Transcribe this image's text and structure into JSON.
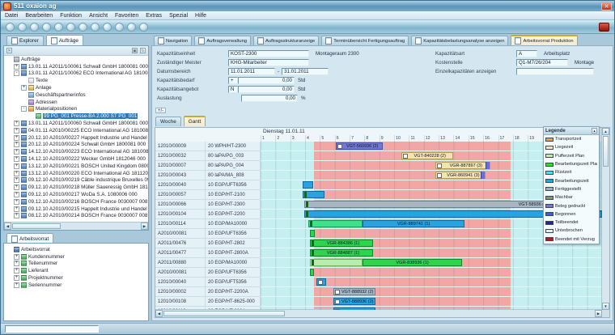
{
  "window": {
    "title": "511 oxaion ag",
    "close_glyph": "✕"
  },
  "menu": {
    "items": [
      "Datei",
      "Bearbeiten",
      "Funktion",
      "Ansicht",
      "Favoriten",
      "Extras",
      "Spezial",
      "Hilfe"
    ]
  },
  "toolbar": {
    "button_count": 12
  },
  "explorer": {
    "tabs": [
      "Explorer",
      "Aufträge"
    ],
    "active_tab": 1,
    "items": [
      {
        "t": "Aufträge",
        "l": 0,
        "x": "",
        "i": "root"
      },
      {
        "t": "13.01.11 A2011/100061 Schwall GmbH 1800081 000",
        "l": 1,
        "x": "+",
        "i": "order"
      },
      {
        "t": "13.01.11 A2011/100062 ECO International AG 1810081 000",
        "l": 1,
        "x": "-",
        "i": "order"
      },
      {
        "t": "Texte",
        "l": 2,
        "x": "",
        "i": "texte"
      },
      {
        "t": "Anlage",
        "l": 2,
        "x": "+",
        "i": "anlage"
      },
      {
        "t": "Geschäftspartnerinfos",
        "l": 2,
        "x": "",
        "i": "info"
      },
      {
        "t": "Adressen",
        "l": 2,
        "x": "",
        "i": "adress"
      },
      {
        "t": "Materialpositionen",
        "l": 2,
        "x": "-",
        "i": "mat"
      },
      {
        "t": "99 PG_001 Presse-BA 2.000 ST PG_001",
        "l": 3,
        "x": "",
        "i": "pos",
        "sel": true
      },
      {
        "t": "13.01.11 A2011/100060 Schwall GmbH 1800081 000",
        "l": 1,
        "x": "+",
        "i": "order"
      },
      {
        "t": "04.01.11 A2010/00225 ECO International AG 1810081 000",
        "l": 1,
        "x": "+",
        "i": "order"
      },
      {
        "t": "20.12.10 A2010/00227 Happelt Industrie und Handel G",
        "l": 1,
        "x": "+",
        "i": "order"
      },
      {
        "t": "20.12.10 A2010/00224 Schwall GmbH 1800081 000",
        "l": 1,
        "x": "+",
        "i": "order"
      },
      {
        "t": "14.12.10 A2010/00223 ECO International AG 1810081",
        "l": 1,
        "x": "+",
        "i": "order"
      },
      {
        "t": "14.12.10 A2010/00222 Wecker GmbH 1812046 000",
        "l": 1,
        "x": "+",
        "i": "order"
      },
      {
        "t": "13.12.10 A2010/00221 BOSCH United Kingdom 0800",
        "l": 1,
        "x": "+",
        "i": "order"
      },
      {
        "t": "13.12.10 A2010/00220 ECO International AG 1811200",
        "l": 1,
        "x": "+",
        "i": "order"
      },
      {
        "t": "09.12.10 A2010/00219 Câble industrique Bruxelles 090",
        "l": 1,
        "x": "+",
        "i": "order"
      },
      {
        "t": "09.12.10 A2010/00218 Müller Saueressig GmbH 18100",
        "l": 1,
        "x": "+",
        "i": "order"
      },
      {
        "t": "09.12.10 A2010/00217 WoDa S.A. 1080006 000",
        "l": 1,
        "x": "+",
        "i": "order"
      },
      {
        "t": "09.12.10 A2010/00216 BOSCH France 0030007 008",
        "l": 1,
        "x": "+",
        "i": "order"
      },
      {
        "t": "09.12.10 A2010/00215 Happelt Industrie und Handel G",
        "l": 1,
        "x": "+",
        "i": "order"
      },
      {
        "t": "08.12.10 A2010/00214 BOSCH France 0030007 008",
        "l": 1,
        "x": "+",
        "i": "order"
      }
    ]
  },
  "arbeitsvorrat": {
    "tab": "Arbeitsvorrat",
    "items": [
      {
        "t": "Arbeitsvorrat",
        "l": 0,
        "x": "",
        "i": "case"
      },
      {
        "t": "Kundennummer",
        "l": 1,
        "x": "+",
        "i": "green"
      },
      {
        "t": "Teilenummer",
        "l": 1,
        "x": "+",
        "i": "green"
      },
      {
        "t": "Lieferant",
        "l": 1,
        "x": "+",
        "i": "green"
      },
      {
        "t": "Projektnummer",
        "l": 1,
        "x": "+",
        "i": "green"
      },
      {
        "t": "Seriennummer",
        "l": 1,
        "x": "+",
        "i": "green"
      }
    ]
  },
  "main_tabs": {
    "items": [
      "Navigation",
      "Auftragsverwaltung",
      "Auftragsstrukturanzeige",
      "Terminübersicht Fertigungsauftrag",
      "Kapazitätsbelastungsanalyse anzeigen",
      "Arbeitsvorrat Produktion"
    ],
    "active": 5
  },
  "form": {
    "expander": "+/-",
    "left": [
      {
        "label": "Kapazitätseinheit",
        "value": "KOST-2300",
        "extra": "Montageraum 2300"
      },
      {
        "label": "Zuständiger Meister",
        "value": "KHG-Mitarbeiter"
      },
      {
        "label": "Datumsbereich",
        "value": "11.01.2011",
        "sep": "-",
        "value2": "31.01.2011"
      },
      {
        "label": "Kapazitätsbedarf",
        "flag": "+",
        "value": "0,00",
        "unit": "Std"
      },
      {
        "label": "Kapazitätsangebot",
        "flag": "N",
        "value": "0,00",
        "unit": "Std"
      },
      {
        "label": "Auslastung",
        "value": "0,00",
        "unit": "%"
      }
    ],
    "right": [
      {
        "label": "Kapazitätsart",
        "value": "A",
        "extra": "Arbeitsplatz"
      },
      {
        "label": "Kostenstelle",
        "value": "Q1-M7/26/204",
        "extra": "Montage"
      },
      {
        "label": "Einzelkapazitäten anzeigen",
        "value": ""
      }
    ]
  },
  "view_tabs": {
    "items": [
      "Woche",
      "Gantt"
    ],
    "active": 1
  },
  "gantt": {
    "date_header": "Dienstag 11.01.11",
    "hours": [
      "1",
      "2",
      "3",
      "4",
      "5",
      "6",
      "7",
      "8",
      "9",
      "10",
      "11",
      "12",
      "13",
      "14",
      "15",
      "16",
      "17",
      "18",
      "19",
      "20",
      "21",
      "22",
      "23"
    ],
    "band_start_pct": 15.6,
    "band_end_pct": 73.3,
    "rows": [
      {
        "order": "12010/00009",
        "op": "20 WPH/HT-2300",
        "bars": [
          {
            "t": "printed",
            "s": 22.1,
            "e": 35.8,
            "label": "VGT-560936 (2)",
            "icon": true
          }
        ]
      },
      {
        "order": "12010/00032",
        "op": "80 laPA/PG_003",
        "bars": [
          {
            "t": "liege",
            "s": 41.2,
            "e": 56.3,
            "label": "VGT-840228 (2)",
            "icon": true
          }
        ]
      },
      {
        "order": "12010/00007",
        "op": "80 laPA/PG_004",
        "bars": [
          {
            "t": "liege",
            "s": 51.2,
            "e": 67.4,
            "label": "VGR-887897 (3)",
            "icon": true,
            "cap": true
          }
        ]
      },
      {
        "order": "12010/00043",
        "op": "80 laPA/MA_808",
        "bars": [
          {
            "t": "liege",
            "s": 51.2,
            "e": 65.8,
            "label": "VGR-860941 (3)",
            "icon": true,
            "cap": true
          }
        ]
      },
      {
        "order": "12010/00040",
        "op": "10 EGP/UFT6356",
        "bars": [
          {
            "t": "bearb",
            "s": 12.3,
            "e": 15.3
          }
        ]
      },
      {
        "order": "12010/00057",
        "op": "10 EGP/HT-2100",
        "bars": [
          {
            "t": "bearb",
            "s": 12.3,
            "e": 18.8,
            "mark": true
          }
        ]
      },
      {
        "order": "12010/00066",
        "op": "10 EGP/HT-2300",
        "bars": [
          {
            "t": "fertig",
            "s": 12.8,
            "e": 86.5,
            "label": "VGT-58936 (3)",
            "la": "right",
            "mark": true
          }
        ]
      },
      {
        "order": "12010/00104",
        "op": "10 EGP/HT-2200",
        "bars": [
          {
            "t": "bearb",
            "s": 12.8,
            "e": 100,
            "mark": true
          }
        ]
      },
      {
        "order": "12010/00114",
        "op": "10 EGP/MA10000",
        "bars": [
          {
            "t": "ruest",
            "s": 14,
            "e": 29.8,
            "mark": true
          },
          {
            "t": "bearb",
            "s": 29.8,
            "e": 59.8,
            "label": "VGR-889741 (1)"
          }
        ]
      },
      {
        "order": "A2010/00081",
        "op": "10 EGP/UFT6356",
        "bars": [
          {
            "t": "plan",
            "s": 14.4,
            "e": 15.8
          }
        ]
      },
      {
        "order": "A2011/00476",
        "op": "10 EGP/HT-2802",
        "bars": [
          {
            "t": "plan",
            "s": 14.4,
            "e": 33,
            "label": "VGR-884386 (1)",
            "mark": true
          }
        ]
      },
      {
        "order": "A2011/00477",
        "op": "10 EGP/HT-2800A",
        "bars": [
          {
            "t": "plan",
            "s": 14.4,
            "e": 33,
            "label": "VGR-884887 (1)",
            "mark": true
          }
        ]
      },
      {
        "order": "A2011/00880",
        "op": "10 EGP/MA10000",
        "bars": [
          {
            "t": "puffer",
            "s": 14.4,
            "e": 29.8,
            "mark": true
          },
          {
            "t": "plan",
            "s": 29.8,
            "e": 59.1,
            "label": "VGR-838936 (1)"
          }
        ]
      },
      {
        "order": "A2010/00081",
        "op": "20 EGP/UFT6356",
        "bars": [
          {
            "t": "plan",
            "s": 14.4,
            "e": 15.6
          }
        ]
      },
      {
        "order": "12010/00040",
        "op": "20 EGP/UFT5356",
        "bars": [
          {
            "t": "bearb",
            "s": 16.3,
            "e": 19.3,
            "icon": true
          }
        ]
      },
      {
        "order": "12010/00002",
        "op": "20 EGP/HT-2200A",
        "bars": [
          {
            "t": "fertig",
            "s": 21.4,
            "e": 33.7,
            "label": "VGT-888932 (2)",
            "icon": true
          }
        ]
      },
      {
        "order": "12010/00108",
        "op": "20 EGP/HT-8625-000",
        "bars": [
          {
            "t": "bearb",
            "s": 21.4,
            "e": 33.7,
            "label": "VGT-888936 (2)",
            "icon": true
          }
        ]
      },
      {
        "order": "12010/00110",
        "op": "20 EGP/HT-0004",
        "bars": [
          {
            "t": "bearb",
            "s": 21.4,
            "e": 33.7,
            "icon": true
          }
        ]
      }
    ]
  },
  "bar_colors": {
    "printed": {
      "bg": "#7277d2",
      "bd": "#4a4fa8"
    },
    "liege": {
      "bg": "#f2e4af",
      "bd": "#b89b52"
    },
    "bearb": {
      "bg": "#29a3e0",
      "bd": "#14699a"
    },
    "fertig": {
      "bg": "#a9b6c2",
      "bd": "#6e7f8d"
    },
    "ruest": {
      "bg": "#3fe08d",
      "bd": "#169a55"
    },
    "plan": {
      "bg": "#2ed34e",
      "bd": "#128a28"
    },
    "puffer": {
      "bg": "#b9edaf",
      "bd": "#6db360"
    }
  },
  "legend": {
    "title": "Legende",
    "items": [
      {
        "label": "Transportzeit",
        "color": "#e8a33d"
      },
      {
        "label": "Liegezeit",
        "color": "#f2e9b0"
      },
      {
        "label": "Pufferzeit Plan",
        "color": "#c4ecb2"
      },
      {
        "label": "Bearbeitungszeit Plan",
        "color": "#3ad23e"
      },
      {
        "label": "Rüstzeit",
        "color": "#58d8e8"
      },
      {
        "label": "Bearbeitungszeit",
        "color": "#29a3e0"
      },
      {
        "label": "Fertiggestellt",
        "color": "#9fb0bf"
      },
      {
        "label": "Machbar",
        "color": "#7e9e4e"
      },
      {
        "label": "Beleg gedruckt",
        "color": "#7277d2"
      },
      {
        "label": "Begonnen",
        "color": "#3a5fd0"
      },
      {
        "label": "Teilbeendet",
        "color": "#1c2a8a"
      },
      {
        "label": "Unterbrochen",
        "color": "#e4ecf2"
      },
      {
        "label": "Beendet mit Verzug",
        "color": "#a52222"
      }
    ]
  },
  "statusbar": {
    "text": ""
  }
}
